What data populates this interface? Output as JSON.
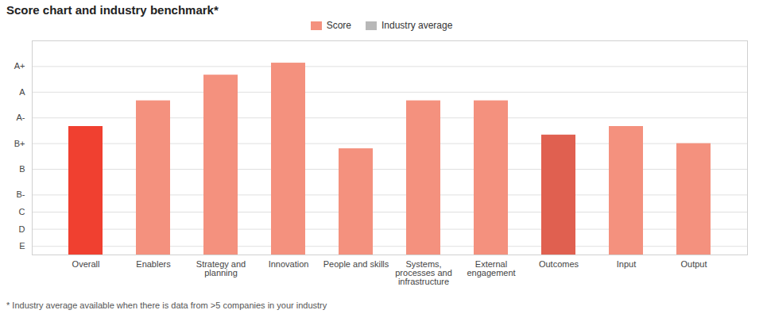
{
  "chart_data": {
    "type": "bar",
    "title": "Score chart and industry benchmark*",
    "footnote": "* Industry average available when there is data from >5 companies in your industry",
    "categories": [
      "Overall",
      "Enablers",
      "Strategy and\nplanning",
      "Innovation",
      "People and skills",
      "Systems,\nprocesses and\ninfrastructure",
      "External\nengagement",
      "Outcomes",
      "Input",
      "Output"
    ],
    "series": [
      {
        "name": "Score",
        "color": "#f4917e",
        "colors": [
          "#f04030",
          "#f4917e",
          "#f4917e",
          "#f4917e",
          "#f4917e",
          "#f4917e",
          "#f4917e",
          "#e06050",
          "#f4917e",
          "#f4917e"
        ],
        "values": [
          7.5,
          9.0,
          10.5,
          11.2,
          6.2,
          9.0,
          9.0,
          7.0,
          7.5,
          6.5
        ]
      },
      {
        "name": "Industry average",
        "color": "#b8b8b8",
        "values": [
          null,
          null,
          null,
          null,
          null,
          null,
          null,
          null,
          null,
          null
        ]
      }
    ],
    "ylim": [
      0,
      12.5
    ],
    "yticks": [
      {
        "value": 11.0,
        "label": "A+"
      },
      {
        "value": 9.5,
        "label": "A"
      },
      {
        "value": 8.0,
        "label": "A-"
      },
      {
        "value": 6.5,
        "label": "B+"
      },
      {
        "value": 5.0,
        "label": "B"
      },
      {
        "value": 3.5,
        "label": "B-"
      },
      {
        "value": 2.5,
        "label": "C"
      },
      {
        "value": 1.5,
        "label": "D"
      },
      {
        "value": 0.5,
        "label": "E"
      }
    ],
    "grid": true,
    "legend": "top"
  }
}
